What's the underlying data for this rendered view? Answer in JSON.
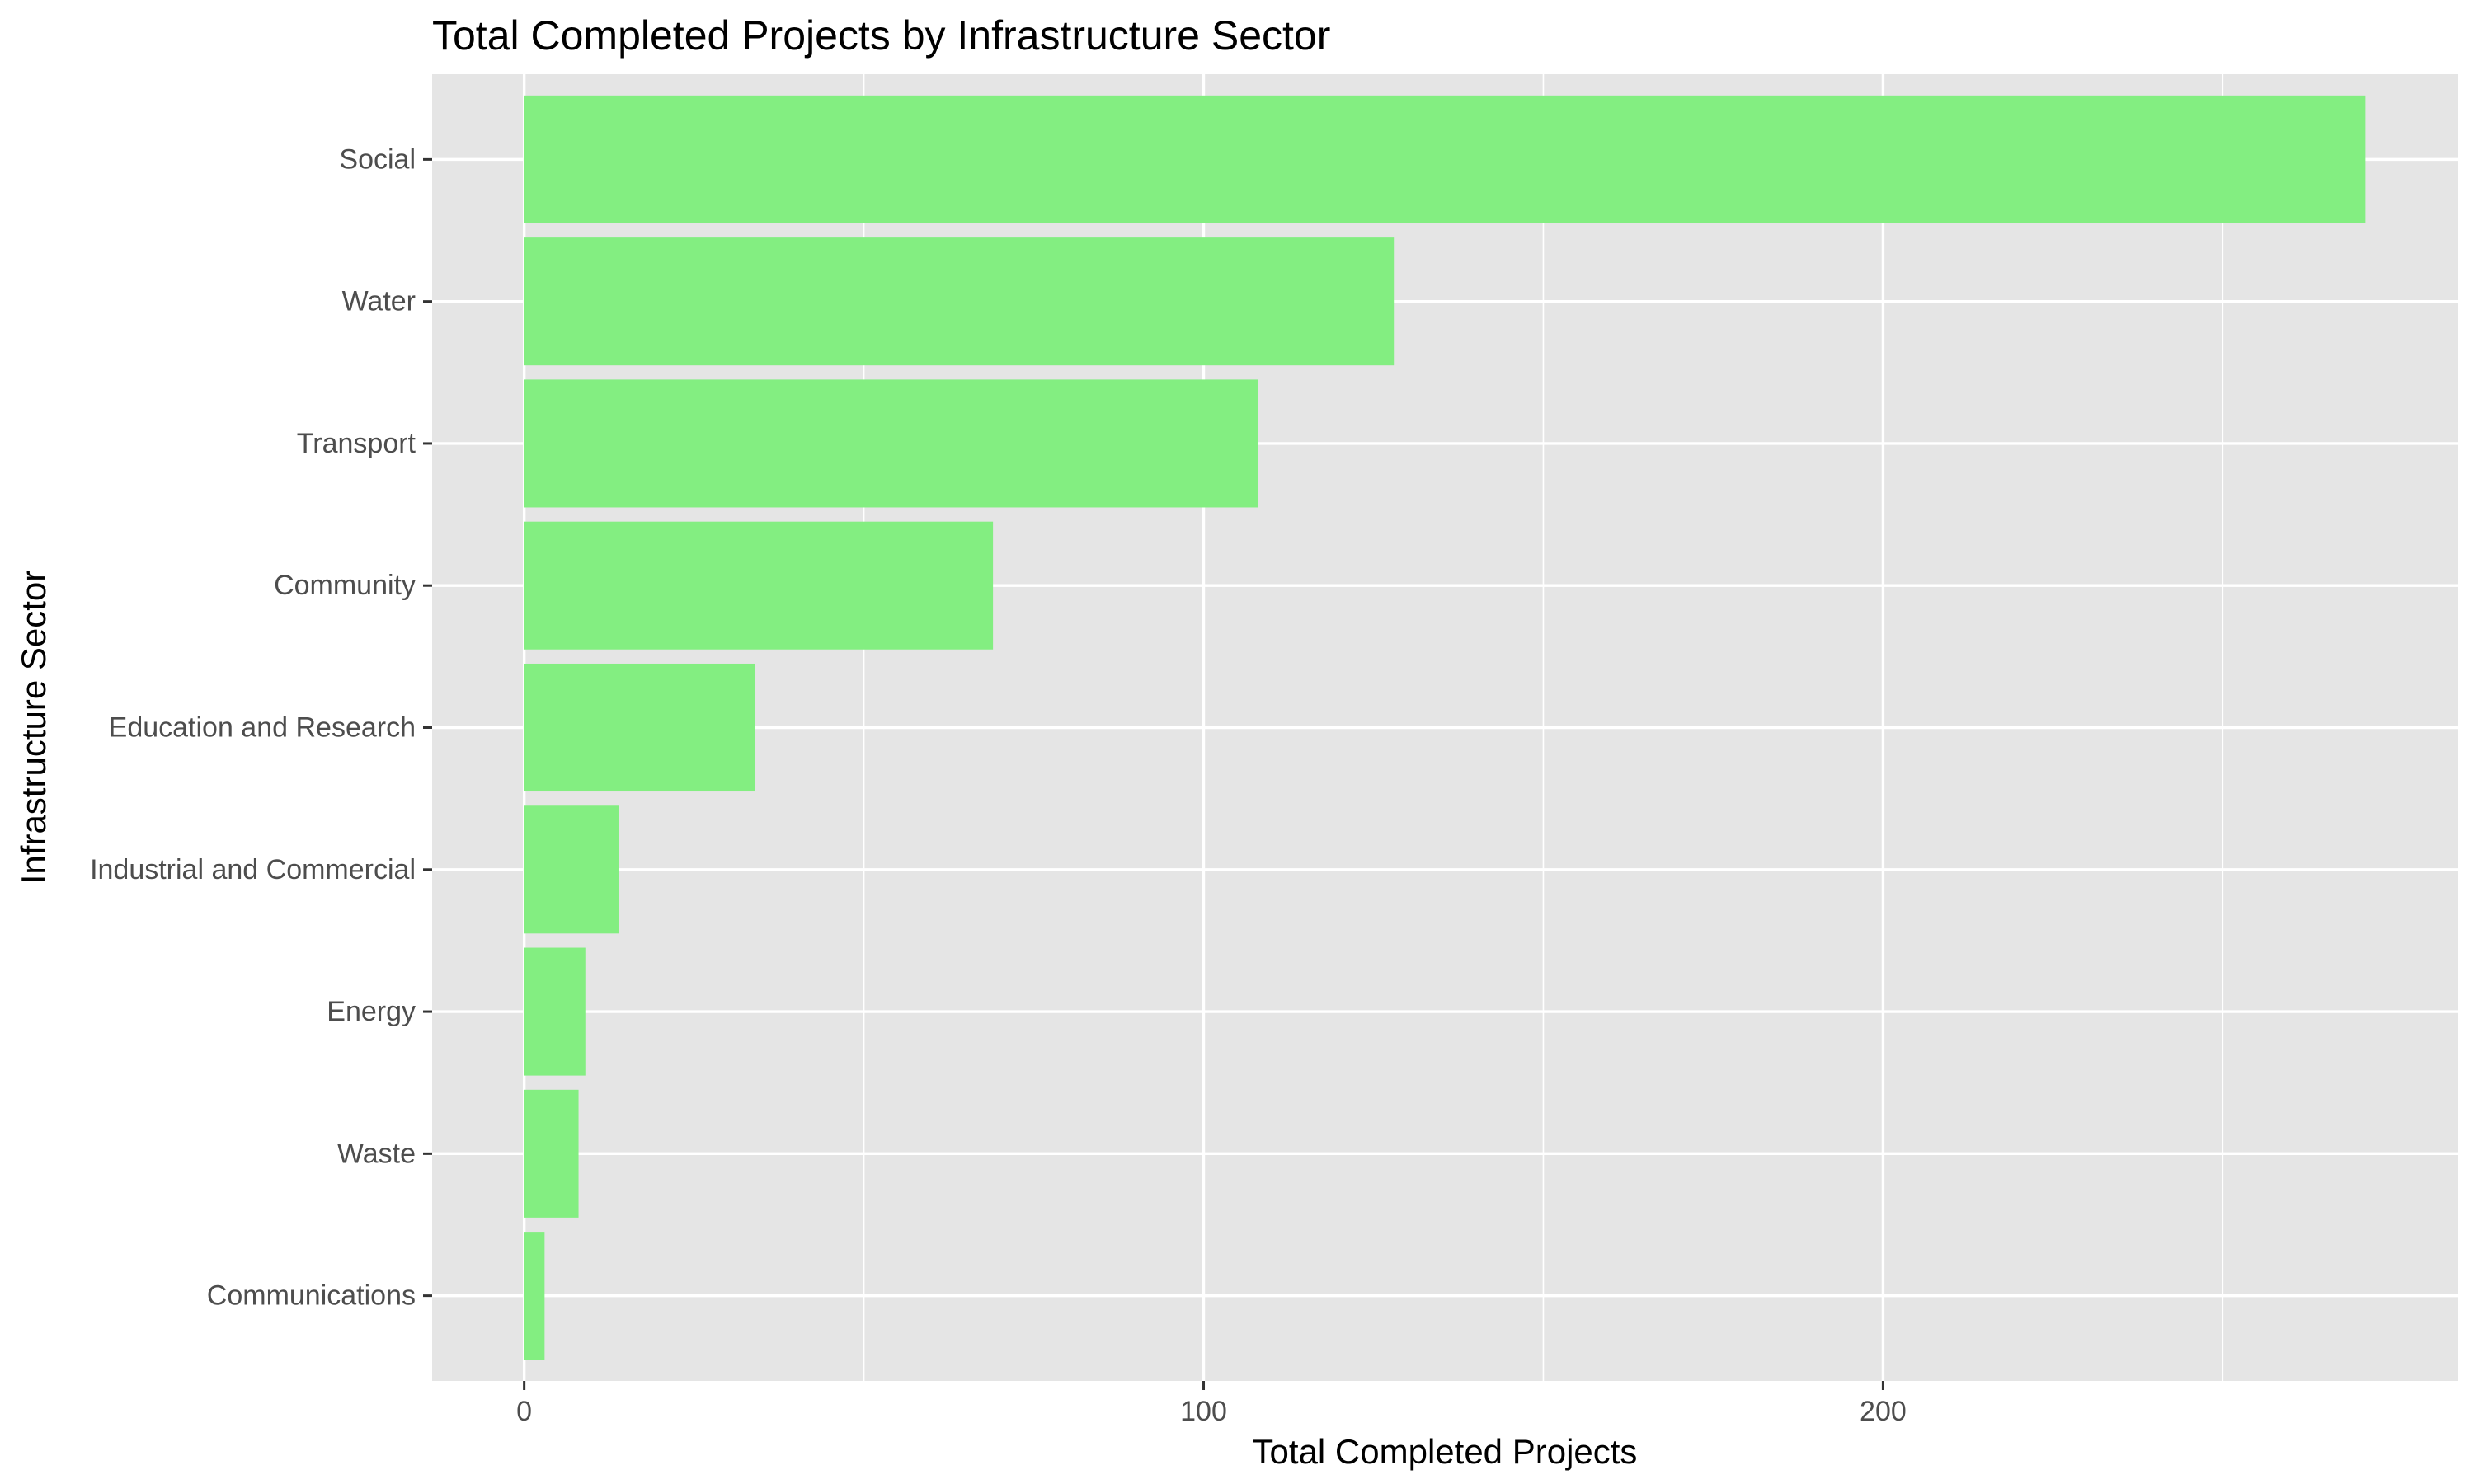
{
  "chart_data": {
    "type": "bar",
    "orientation": "horizontal",
    "title": "Total Completed Projects by Infrastructure Sector",
    "xlabel": "Total Completed Projects",
    "ylabel": "Infrastructure Sector",
    "categories": [
      "Social",
      "Water",
      "Transport",
      "Community",
      "Education and Research",
      "Industrial and Commercial",
      "Energy",
      "Waste",
      "Communications"
    ],
    "values": [
      271,
      128,
      108,
      69,
      34,
      14,
      9,
      8,
      3
    ],
    "xlim": [
      -13.55,
      284.55
    ],
    "xticks": [
      0,
      100,
      200
    ],
    "xtick_labels": [
      "0",
      "100",
      "200"
    ],
    "grid": true,
    "legend": "none",
    "colors": {
      "bar": "#83ee81",
      "panel": "#e5e5e5",
      "grid": "#ffffff",
      "tick_label": "#4d4d4d",
      "tick_mark": "#333333"
    }
  }
}
